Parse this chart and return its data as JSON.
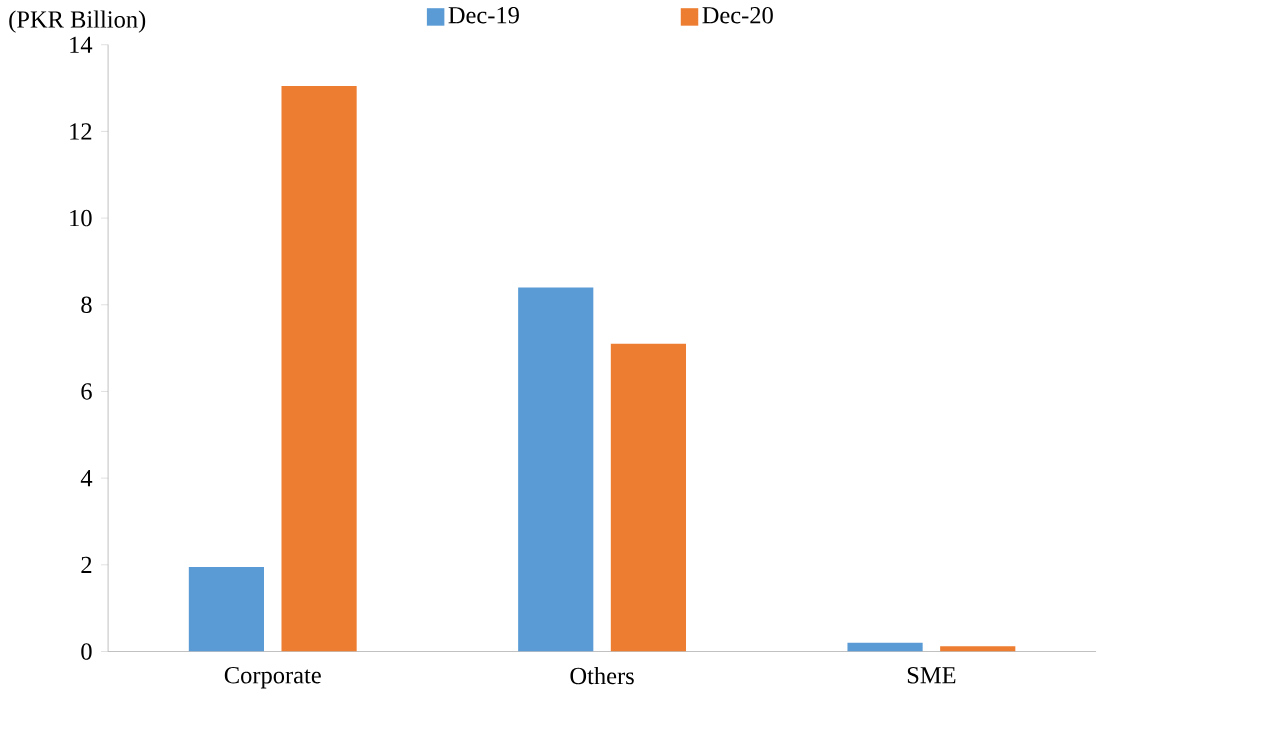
{
  "chart_data": {
    "type": "bar",
    "ylabel": "(PKR Billion)",
    "categories": [
      "Corporate",
      "Others",
      "SME"
    ],
    "series": [
      {
        "name": "Dec-19",
        "color": "#5b9bd5",
        "values": [
          1.95,
          8.4,
          0.2
        ]
      },
      {
        "name": "Dec-20",
        "color": "#ed7d31",
        "values": [
          13.05,
          7.1,
          0.12
        ]
      }
    ],
    "ylim": [
      0,
      14
    ],
    "yticks": [
      0,
      2,
      4,
      6,
      8,
      10,
      12,
      14
    ],
    "legend": "top",
    "grid": false
  }
}
